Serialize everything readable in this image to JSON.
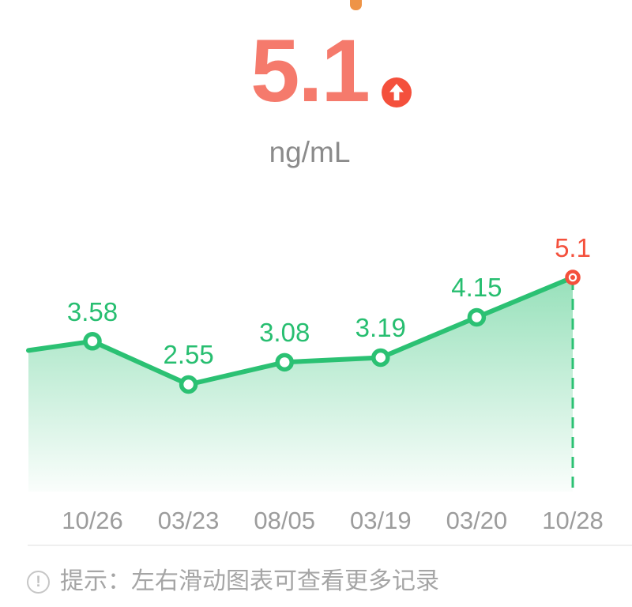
{
  "header": {
    "value": "5.1",
    "unit": "ng/mL",
    "trend_icon": "arrow-up-icon",
    "value_color": "#F57A6C",
    "badge_color": "#F4503C",
    "pointer_fragment_color": "#EE9447"
  },
  "chart_data": {
    "type": "area",
    "title": "",
    "xlabel": "",
    "ylabel": "ng/mL",
    "x": [
      "10/26",
      "03/23",
      "08/05",
      "03/19",
      "03/20",
      "10/28"
    ],
    "values": [
      3.58,
      2.55,
      3.08,
      3.19,
      4.15,
      5.1
    ],
    "point_labels": [
      "3.58",
      "2.55",
      "3.08",
      "3.19",
      "4.15",
      "5.1"
    ],
    "highlight_index": 5,
    "clipped_left_entry_value": 3.36,
    "ylim": [
      0,
      6.5
    ],
    "grid": false,
    "legend": "none",
    "line_color": "#2BC173",
    "label_color": "#27BE70",
    "highlight_color": "#F4503C",
    "axis_label_color": "#9C9C9C"
  },
  "footer": {
    "divider_color": "#EFEFEF",
    "tip_icon": "exclamation-circle-icon",
    "tip_icon_glyph": "!",
    "tip_text": "提示：左右滑动图表可查看更多记录"
  }
}
